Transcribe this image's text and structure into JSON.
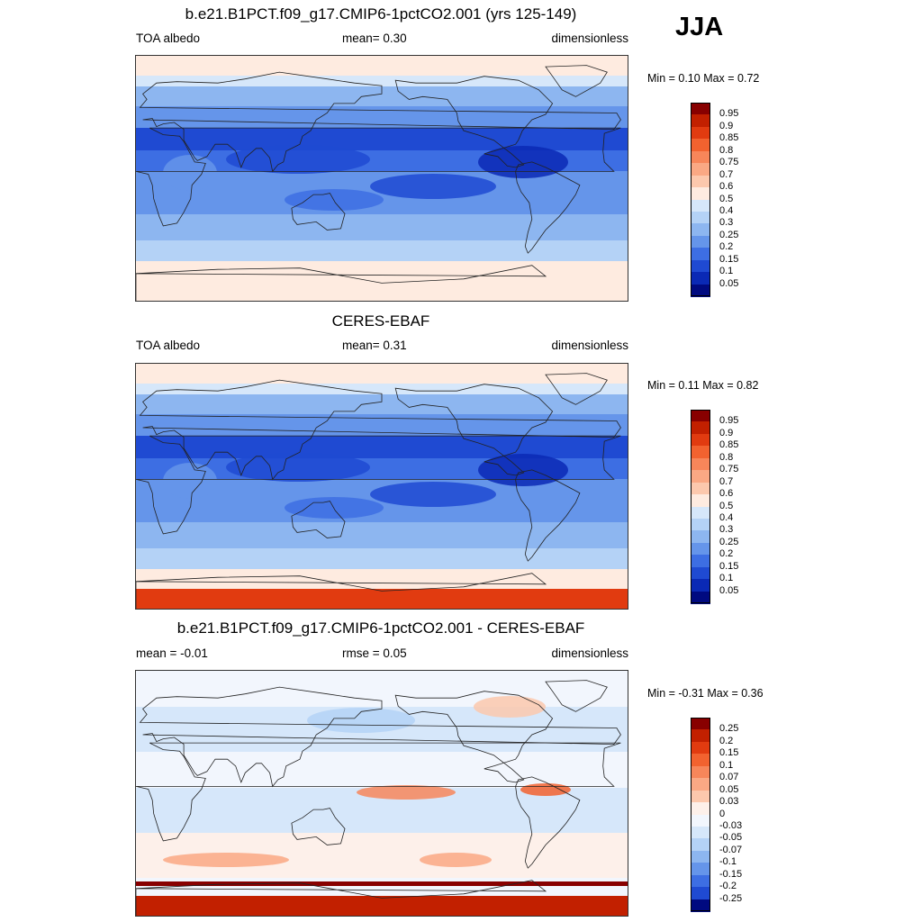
{
  "season": "JJA",
  "panels": [
    {
      "title": "b.e21.B1PCT.f09_g17.CMIP6-1pctCO2.001 (yrs 125-149)",
      "left_label": "TOA albedo",
      "center_label": "mean=   0.30",
      "right_label": "dimensionless",
      "minmax": "Min =   0.10 Max =   0.72",
      "colorbar": {
        "labels": [
          "0.95",
          "0.9",
          "0.85",
          "0.8",
          "0.75",
          "0.7",
          "0.6",
          "0.5",
          "0.4",
          "0.3",
          "0.25",
          "0.2",
          "0.15",
          "0.1",
          "0.05"
        ],
        "colors": [
          "#880000",
          "#c22000",
          "#e13b10",
          "#f2622f",
          "#f7865a",
          "#faa884",
          "#fcc8ad",
          "#feebe0",
          "#d6e7fa",
          "#b4d2f6",
          "#8db6f0",
          "#6595ea",
          "#3d6ee3",
          "#1f4ad2",
          "#0a29b5",
          "#000a80"
        ]
      }
    },
    {
      "title": "CERES-EBAF",
      "left_label": "TOA albedo",
      "center_label": "mean=   0.31",
      "right_label": "dimensionless",
      "minmax": "Min =   0.11 Max =   0.82",
      "colorbar": {
        "labels": [
          "0.95",
          "0.9",
          "0.85",
          "0.8",
          "0.75",
          "0.7",
          "0.6",
          "0.5",
          "0.4",
          "0.3",
          "0.25",
          "0.2",
          "0.15",
          "0.1",
          "0.05"
        ],
        "colors": [
          "#880000",
          "#c22000",
          "#e13b10",
          "#f2622f",
          "#f7865a",
          "#faa884",
          "#fcc8ad",
          "#feebe0",
          "#d6e7fa",
          "#b4d2f6",
          "#8db6f0",
          "#6595ea",
          "#3d6ee3",
          "#1f4ad2",
          "#0a29b5",
          "#000a80"
        ]
      }
    },
    {
      "title": "b.e21.B1PCT.f09_g17.CMIP6-1pctCO2.001 - CERES-EBAF",
      "left_label": "mean =  -0.01",
      "center_label": "rmse =   0.05",
      "right_label": "dimensionless",
      "minmax": "Min =  -0.31 Max =   0.36",
      "colorbar": {
        "labels": [
          "0.25",
          "0.2",
          "0.15",
          "0.1",
          "0.07",
          "0.05",
          "0.03",
          "0",
          "-0.03",
          "-0.05",
          "-0.07",
          "-0.1",
          "-0.15",
          "-0.2",
          "-0.25"
        ],
        "colors": [
          "#880000",
          "#c22000",
          "#e13b10",
          "#f2622f",
          "#f7865a",
          "#faa884",
          "#fcc8ad",
          "#fdf0ea",
          "#f2f6fd",
          "#d6e7fa",
          "#b4d2f6",
          "#8db6f0",
          "#6595ea",
          "#3d6ee3",
          "#1f4ad2",
          "#000a80"
        ]
      }
    }
  ],
  "chart_data": [
    {
      "type": "heatmap",
      "title": "b.e21.B1PCT.f09_g17.CMIP6-1pctCO2.001 (yrs 125-149)",
      "variable": "TOA albedo",
      "units": "dimensionless",
      "season": "JJA",
      "mean": 0.3,
      "min": 0.1,
      "max": 0.72,
      "contour_levels": [
        0.05,
        0.1,
        0.15,
        0.2,
        0.25,
        0.3,
        0.4,
        0.5,
        0.6,
        0.7,
        0.75,
        0.8,
        0.85,
        0.9,
        0.95
      ]
    },
    {
      "type": "heatmap",
      "title": "CERES-EBAF",
      "variable": "TOA albedo",
      "units": "dimensionless",
      "season": "JJA",
      "mean": 0.31,
      "min": 0.11,
      "max": 0.82,
      "contour_levels": [
        0.05,
        0.1,
        0.15,
        0.2,
        0.25,
        0.3,
        0.4,
        0.5,
        0.6,
        0.7,
        0.75,
        0.8,
        0.85,
        0.9,
        0.95
      ]
    },
    {
      "type": "heatmap",
      "title": "b.e21.B1PCT.f09_g17.CMIP6-1pctCO2.001 - CERES-EBAF",
      "units": "dimensionless",
      "season": "JJA",
      "mean": -0.01,
      "rmse": 0.05,
      "min": -0.31,
      "max": 0.36,
      "contour_levels": [
        -0.25,
        -0.2,
        -0.15,
        -0.1,
        -0.07,
        -0.05,
        -0.03,
        0,
        0.03,
        0.05,
        0.07,
        0.1,
        0.15,
        0.2,
        0.25
      ]
    }
  ]
}
